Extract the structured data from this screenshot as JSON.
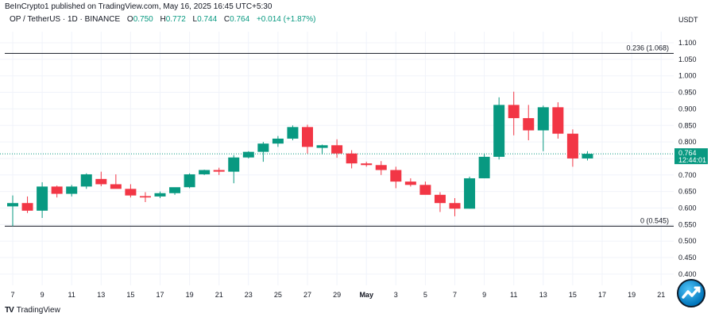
{
  "header": {
    "publisher_line": "BeInCrypto1 published on TradingView.com, May 16, 2025 16:45 UTC+5:30",
    "symbol_line": "OP / TetherUS · 1D · BINANCE",
    "ohlc": {
      "o_label": "O",
      "o": "0.750",
      "h_label": "H",
      "h": "0.772",
      "l_label": "L",
      "l": "0.744",
      "c_label": "C",
      "c": "0.764",
      "change": "+0.014 (+1.87%)"
    }
  },
  "price_axis": {
    "currency": "USDT",
    "current_price": "0.764",
    "countdown": "12:44:01"
  },
  "footer": {
    "brand": "TradingView",
    "brand_mark": "TV"
  },
  "colors": {
    "up": "#089981",
    "down": "#f23645",
    "grid": "#f0f3fa",
    "fib_line": "#131722",
    "current_line": "#089981"
  },
  "chart_data": {
    "type": "candlestick",
    "title": "OP / TetherUS · 1D · BINANCE",
    "xlabel": "",
    "ylabel": "USDT",
    "ylim": [
      0.375,
      1.125
    ],
    "grid": true,
    "y_ticks": [
      "1.100",
      "1.050",
      "1.000",
      "0.950",
      "0.900",
      "0.850",
      "0.800",
      "0.750",
      "0.700",
      "0.650",
      "0.600",
      "0.550",
      "0.500",
      "0.450",
      "0.400"
    ],
    "x_ticks": [
      "7",
      "9",
      "11",
      "13",
      "15",
      "17",
      "19",
      "21",
      "23",
      "25",
      "27",
      "29",
      "May",
      "3",
      "5",
      "7",
      "9",
      "11",
      "13",
      "15",
      "17",
      "19",
      "21"
    ],
    "annotations": [
      {
        "label": "0.236 (1.068)",
        "value": 1.068
      },
      {
        "label": "0 (0.545)",
        "value": 0.545
      }
    ],
    "dates": [
      "Apr 7",
      "Apr 8",
      "Apr 9",
      "Apr 10",
      "Apr 11",
      "Apr 12",
      "Apr 13",
      "Apr 14",
      "Apr 15",
      "Apr 16",
      "Apr 17",
      "Apr 18",
      "Apr 19",
      "Apr 20",
      "Apr 21",
      "Apr 22",
      "Apr 23",
      "Apr 24",
      "Apr 25",
      "Apr 26",
      "Apr 27",
      "Apr 28",
      "Apr 29",
      "Apr 30",
      "May 1",
      "May 2",
      "May 3",
      "May 4",
      "May 5",
      "May 6",
      "May 7",
      "May 8",
      "May 9",
      "May 10",
      "May 11",
      "May 12",
      "May 13",
      "May 14",
      "May 15",
      "May 16"
    ],
    "open": [
      0.605,
      0.615,
      0.592,
      0.665,
      0.643,
      0.665,
      0.688,
      0.672,
      0.658,
      0.636,
      0.635,
      0.645,
      0.663,
      0.702,
      0.715,
      0.71,
      0.753,
      0.77,
      0.795,
      0.81,
      0.845,
      0.782,
      0.79,
      0.765,
      0.735,
      0.73,
      0.715,
      0.68,
      0.67,
      0.64,
      0.615,
      0.598,
      0.69,
      0.755,
      0.912,
      0.872,
      0.835,
      0.905,
      0.825,
      0.75
    ],
    "high": [
      0.638,
      0.635,
      0.678,
      0.668,
      0.67,
      0.705,
      0.71,
      0.702,
      0.672,
      0.648,
      0.65,
      0.662,
      0.705,
      0.716,
      0.722,
      0.76,
      0.772,
      0.8,
      0.818,
      0.85,
      0.852,
      0.792,
      0.808,
      0.775,
      0.74,
      0.742,
      0.725,
      0.69,
      0.68,
      0.648,
      0.63,
      0.695,
      0.765,
      0.935,
      0.952,
      0.912,
      0.91,
      0.92,
      0.838,
      0.772
    ],
    "low": [
      0.545,
      0.585,
      0.57,
      0.632,
      0.635,
      0.658,
      0.666,
      0.66,
      0.632,
      0.618,
      0.63,
      0.64,
      0.66,
      0.7,
      0.7,
      0.675,
      0.75,
      0.74,
      0.785,
      0.805,
      0.765,
      0.762,
      0.752,
      0.72,
      0.725,
      0.7,
      0.66,
      0.665,
      0.648,
      0.588,
      0.575,
      0.598,
      0.69,
      0.747,
      0.82,
      0.805,
      0.772,
      0.81,
      0.725,
      0.744
    ],
    "close": [
      0.615,
      0.592,
      0.665,
      0.643,
      0.665,
      0.702,
      0.672,
      0.658,
      0.638,
      0.632,
      0.645,
      0.663,
      0.702,
      0.715,
      0.71,
      0.753,
      0.77,
      0.795,
      0.81,
      0.845,
      0.785,
      0.79,
      0.765,
      0.735,
      0.73,
      0.715,
      0.68,
      0.67,
      0.64,
      0.615,
      0.598,
      0.69,
      0.755,
      0.912,
      0.872,
      0.835,
      0.905,
      0.825,
      0.75,
      0.764
    ]
  }
}
